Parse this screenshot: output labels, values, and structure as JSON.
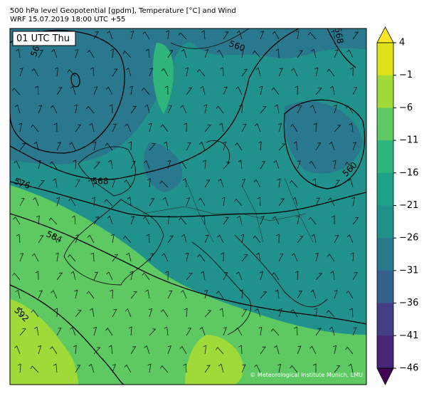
{
  "header": {
    "title": "500 hPa level Geopotential [gpdm], Temperature [°C] and Wind",
    "subtitle": "WRF 15.07.2019 18:00 UTC +55"
  },
  "map": {
    "time_label": "01 UTC Thu",
    "copyright": "© Meteorological Institute Munich, LMU",
    "contour_labels": [
      "56",
      "560",
      "568",
      "560",
      "568",
      "576",
      "584",
      "592"
    ]
  },
  "colorbar": {
    "ticks": [
      4,
      {
        "value": -1,
        "label": "−1"
      },
      {
        "value": -6,
        "label": "−6"
      },
      {
        "value": -11,
        "label": "−11"
      },
      {
        "value": -16,
        "label": "−16"
      },
      {
        "value": -21,
        "label": "−21"
      },
      {
        "value": -26,
        "label": "−26"
      },
      {
        "value": -31,
        "label": "−31"
      },
      {
        "value": -36,
        "label": "−36"
      },
      {
        "value": -41,
        "label": "−41"
      },
      {
        "value": -46,
        "label": "−46"
      }
    ],
    "colors": [
      "#fde725",
      "#dde318",
      "#a0da39",
      "#5ec962",
      "#2fb47c",
      "#1fa187",
      "#21918c",
      "#2a788e",
      "#355f8d",
      "#433e85",
      "#482677",
      "#440154"
    ]
  }
}
